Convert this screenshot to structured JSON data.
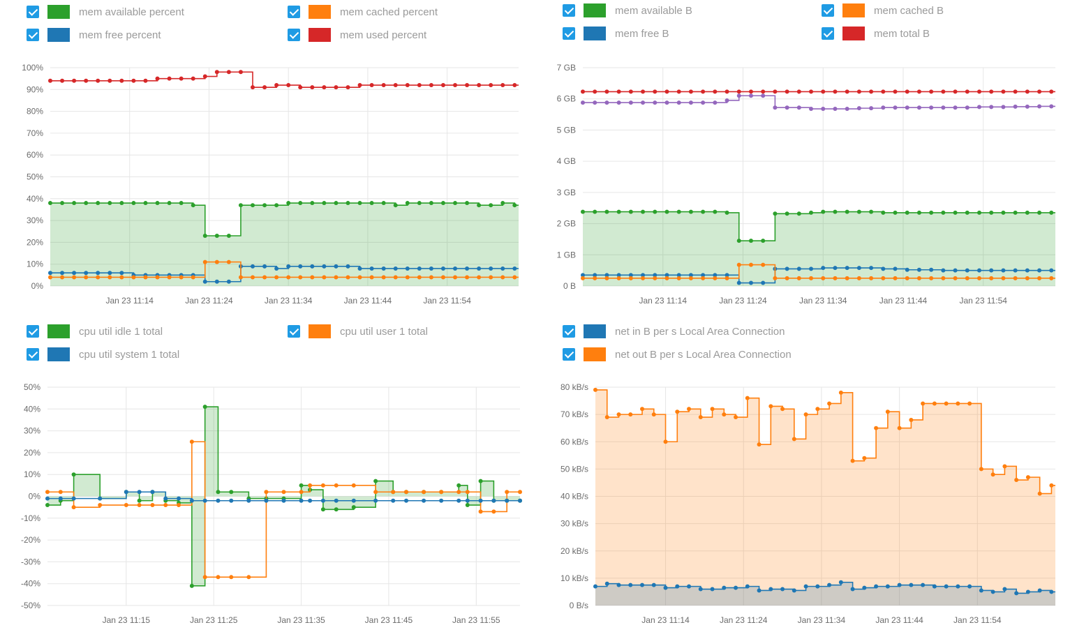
{
  "colors": {
    "green": "#2ca02c",
    "blue": "#1f77b4",
    "orange": "#ff7f0e",
    "red": "#d62728",
    "purple": "#9467bd",
    "checkbox": "#1f9be4"
  },
  "panels": [
    {
      "id": "mem-percent",
      "legend": [
        {
          "label": "mem available percent",
          "color": "#2ca02c"
        },
        {
          "label": "mem cached percent",
          "color": "#ff7f0e"
        },
        {
          "label": "mem free percent",
          "color": "#1f77b4"
        },
        {
          "label": "mem used percent",
          "color": "#d62728"
        }
      ]
    },
    {
      "id": "mem-bytes",
      "legend": [
        {
          "label": "mem available B",
          "color": "#2ca02c"
        },
        {
          "label": "mem cached B",
          "color": "#ff7f0e"
        },
        {
          "label": "mem free B",
          "color": "#1f77b4"
        },
        {
          "label": "mem total B",
          "color": "#d62728"
        }
      ]
    },
    {
      "id": "cpu",
      "legend": [
        {
          "label": "cpu util idle 1 total",
          "color": "#2ca02c"
        },
        {
          "label": "cpu util user 1 total",
          "color": "#ff7f0e"
        },
        {
          "label": "cpu util system 1 total",
          "color": "#1f77b4"
        }
      ]
    },
    {
      "id": "net",
      "legend": [
        {
          "label": "net in B per s Local Area Connection",
          "color": "#1f77b4"
        },
        {
          "label": "net out B per s Local Area Connection",
          "color": "#ff7f0e"
        }
      ]
    }
  ],
  "chart_data": [
    {
      "type": "line",
      "step": true,
      "grid": true,
      "ylim": [
        0,
        100
      ],
      "yticks": [
        0,
        10,
        20,
        30,
        40,
        50,
        60,
        70,
        80,
        90,
        100
      ],
      "ytick_labels": [
        "0%",
        "10%",
        "20%",
        "30%",
        "40%",
        "50%",
        "60%",
        "70%",
        "80%",
        "90%",
        "100%"
      ],
      "xlim": [
        0,
        59
      ],
      "xticks": [
        10,
        20,
        30,
        40,
        50
      ],
      "xtick_labels": [
        "Jan 23 11:14",
        "Jan 23 11:24",
        "Jan 23 11:34",
        "Jan 23 11:44",
        "Jan 23 11:54"
      ],
      "x": [
        0,
        1.5,
        3,
        4.5,
        6,
        7.5,
        9,
        10.5,
        12,
        13.5,
        15,
        16.5,
        18,
        19.5,
        21,
        22.5,
        24,
        25.5,
        27,
        28.5,
        30,
        31.5,
        33,
        34.5,
        36,
        37.5,
        39,
        40.5,
        42,
        43.5,
        45,
        46.5,
        48,
        49.5,
        51,
        52.5,
        54,
        55.5,
        57,
        58.5
      ],
      "series": [
        {
          "name": "mem available percent",
          "color": "#2ca02c",
          "fill": true,
          "markers": true,
          "values": [
            38,
            38,
            38,
            38,
            38,
            38,
            38,
            38,
            38,
            38,
            38,
            38,
            37,
            23,
            23,
            23,
            37,
            37,
            37,
            37,
            38,
            38,
            38,
            38,
            38,
            38,
            38,
            38,
            38,
            37,
            38,
            38,
            38,
            38,
            38,
            38,
            37,
            37,
            38,
            37
          ]
        },
        {
          "name": "mem free percent",
          "color": "#1f77b4",
          "fill": false,
          "markers": true,
          "values": [
            6,
            6,
            6,
            6,
            6,
            6,
            6,
            5,
            5,
            5,
            5,
            5,
            5,
            2,
            2,
            2,
            9,
            9,
            9,
            8,
            9,
            9,
            9,
            9,
            9,
            9,
            8,
            8,
            8,
            8,
            8,
            8,
            8,
            8,
            8,
            8,
            8,
            8,
            8,
            8
          ]
        },
        {
          "name": "mem cached percent",
          "color": "#ff7f0e",
          "fill": false,
          "markers": true,
          "values": [
            4,
            4,
            4,
            4,
            4,
            4,
            4,
            4,
            4,
            4,
            4,
            4,
            4,
            11,
            11,
            11,
            4,
            4,
            4,
            4,
            4,
            4,
            4,
            4,
            4,
            4,
            4,
            4,
            4,
            4,
            4,
            4,
            4,
            4,
            4,
            4,
            4,
            4,
            4,
            4
          ]
        },
        {
          "name": "mem used percent",
          "color": "#d62728",
          "fill": false,
          "markers": true,
          "values": [
            94,
            94,
            94,
            94,
            94,
            94,
            94,
            94,
            94,
            95,
            95,
            95,
            95,
            96,
            98,
            98,
            98,
            91,
            91,
            92,
            92,
            91,
            91,
            91,
            91,
            91,
            92,
            92,
            92,
            92,
            92,
            92,
            92,
            92,
            92,
            92,
            92,
            92,
            92,
            92
          ]
        }
      ]
    },
    {
      "type": "line",
      "step": true,
      "grid": true,
      "ylim": [
        0,
        7
      ],
      "yticks": [
        0,
        1,
        2,
        3,
        4,
        5,
        6,
        7
      ],
      "ytick_labels": [
        "0 B",
        "1 GB",
        "2 GB",
        "3 GB",
        "4 GB",
        "5 GB",
        "6 GB",
        "7 GB"
      ],
      "xlim": [
        0,
        59
      ],
      "xticks": [
        10,
        20,
        30,
        40,
        50
      ],
      "xtick_labels": [
        "Jan 23 11:14",
        "Jan 23 11:24",
        "Jan 23 11:34",
        "Jan 23 11:44",
        "Jan 23 11:54"
      ],
      "x": [
        0,
        1.5,
        3,
        4.5,
        6,
        7.5,
        9,
        10.5,
        12,
        13.5,
        15,
        16.5,
        18,
        19.5,
        21,
        22.5,
        24,
        25.5,
        27,
        28.5,
        30,
        31.5,
        33,
        34.5,
        36,
        37.5,
        39,
        40.5,
        42,
        43.5,
        45,
        46.5,
        48,
        49.5,
        51,
        52.5,
        54,
        55.5,
        57,
        58.5
      ],
      "series": [
        {
          "name": "mem available B",
          "color": "#2ca02c",
          "fill": true,
          "markers": true,
          "values": [
            2.38,
            2.38,
            2.38,
            2.38,
            2.38,
            2.38,
            2.38,
            2.38,
            2.38,
            2.38,
            2.38,
            2.38,
            2.35,
            1.45,
            1.45,
            1.45,
            2.32,
            2.32,
            2.32,
            2.35,
            2.38,
            2.38,
            2.38,
            2.38,
            2.38,
            2.35,
            2.35,
            2.35,
            2.35,
            2.35,
            2.35,
            2.35,
            2.35,
            2.35,
            2.35,
            2.35,
            2.35,
            2.35,
            2.35,
            2.35
          ]
        },
        {
          "name": "mem free B",
          "color": "#1f77b4",
          "fill": false,
          "markers": true,
          "values": [
            0.35,
            0.35,
            0.35,
            0.35,
            0.35,
            0.35,
            0.35,
            0.35,
            0.35,
            0.35,
            0.35,
            0.35,
            0.35,
            0.1,
            0.1,
            0.1,
            0.55,
            0.55,
            0.55,
            0.55,
            0.58,
            0.58,
            0.58,
            0.58,
            0.58,
            0.55,
            0.55,
            0.52,
            0.52,
            0.52,
            0.5,
            0.5,
            0.5,
            0.5,
            0.5,
            0.5,
            0.5,
            0.5,
            0.5,
            0.5
          ]
        },
        {
          "name": "mem cached B",
          "color": "#ff7f0e",
          "fill": false,
          "markers": true,
          "values": [
            0.25,
            0.25,
            0.25,
            0.25,
            0.25,
            0.25,
            0.25,
            0.25,
            0.25,
            0.25,
            0.25,
            0.25,
            0.25,
            0.68,
            0.68,
            0.68,
            0.25,
            0.25,
            0.25,
            0.25,
            0.25,
            0.25,
            0.25,
            0.25,
            0.25,
            0.25,
            0.25,
            0.25,
            0.25,
            0.25,
            0.25,
            0.25,
            0.25,
            0.25,
            0.25,
            0.25,
            0.25,
            0.25,
            0.25,
            0.25
          ]
        },
        {
          "name": "mem total B",
          "color": "#d62728",
          "fill": false,
          "markers": true,
          "values": [
            6.23,
            6.23,
            6.23,
            6.23,
            6.23,
            6.23,
            6.23,
            6.23,
            6.23,
            6.23,
            6.23,
            6.23,
            6.23,
            6.23,
            6.23,
            6.23,
            6.23,
            6.23,
            6.23,
            6.23,
            6.23,
            6.23,
            6.23,
            6.23,
            6.23,
            6.23,
            6.23,
            6.23,
            6.23,
            6.23,
            6.23,
            6.23,
            6.23,
            6.23,
            6.23,
            6.23,
            6.23,
            6.23,
            6.23,
            6.23
          ]
        },
        {
          "color": "#9467bd",
          "fill": false,
          "markers": true,
          "values": [
            5.88,
            5.88,
            5.88,
            5.88,
            5.88,
            5.88,
            5.88,
            5.88,
            5.88,
            5.88,
            5.88,
            5.88,
            5.95,
            6.1,
            6.1,
            6.1,
            5.72,
            5.72,
            5.72,
            5.68,
            5.68,
            5.68,
            5.68,
            5.7,
            5.7,
            5.72,
            5.72,
            5.72,
            5.72,
            5.72,
            5.72,
            5.72,
            5.72,
            5.74,
            5.74,
            5.74,
            5.75,
            5.75,
            5.76,
            5.76
          ]
        }
      ]
    },
    {
      "type": "line",
      "step": true,
      "grid": true,
      "ylim": [
        -50,
        50
      ],
      "yticks": [
        -50,
        -40,
        -30,
        -20,
        -10,
        0,
        10,
        20,
        30,
        40,
        50
      ],
      "ytick_labels": [
        "-50%",
        "-40%",
        "-30%",
        "-20%",
        "-10%",
        "0%",
        "10%",
        "20%",
        "30%",
        "40%",
        "50%"
      ],
      "xlim": [
        0,
        54
      ],
      "xticks": [
        9,
        19,
        29,
        39,
        49
      ],
      "xtick_labels": [
        "Jan 23 11:15",
        "Jan 23 11:25",
        "Jan 23 11:35",
        "Jan 23 11:45",
        "Jan 23 11:55"
      ],
      "x": [
        0,
        1.5,
        3,
        6,
        9,
        10.5,
        12,
        13.5,
        15,
        16.5,
        18,
        19.5,
        21,
        23,
        25,
        27,
        29,
        30,
        31.5,
        33,
        35,
        37.5,
        39.5,
        41,
        43,
        45,
        47,
        48,
        49.5,
        51,
        52.5,
        54
      ],
      "series": [
        {
          "name": "cpu util idle 1 total",
          "color": "#2ca02c",
          "fill": true,
          "markers": true,
          "values": [
            -4,
            -2,
            10,
            -1,
            2,
            -2,
            2,
            -2,
            -3,
            -41,
            41,
            2,
            2,
            -1,
            -1,
            -1,
            5,
            3,
            -6,
            -6,
            -5,
            7,
            2,
            2,
            2,
            2,
            5,
            -4,
            7,
            -2,
            -2,
            -2
          ]
        },
        {
          "name": "cpu util user 1 total",
          "color": "#ff7f0e",
          "fill": false,
          "markers": true,
          "values": [
            2,
            2,
            -5,
            -4,
            -4,
            -4,
            -4,
            -4,
            -4,
            25,
            -37,
            -37,
            -37,
            -37,
            2,
            2,
            2,
            5,
            5,
            5,
            5,
            2,
            2,
            2,
            2,
            2,
            2,
            2,
            -7,
            -7,
            2,
            2
          ]
        },
        {
          "name": "cpu util system 1 total",
          "color": "#1f77b4",
          "fill": false,
          "markers": true,
          "values": [
            -1,
            -1,
            -1,
            -1,
            2,
            2,
            2,
            -1,
            -1,
            -2,
            -2,
            -2,
            -2,
            -2,
            -2,
            -2,
            -2,
            -2,
            -2,
            -2,
            -2,
            -2,
            -2,
            -2,
            -2,
            -2,
            -2,
            -2,
            -2,
            -2,
            -2,
            -2
          ]
        }
      ]
    },
    {
      "type": "area",
      "step": true,
      "grid": true,
      "ylim": [
        0,
        80
      ],
      "yticks": [
        0,
        10,
        20,
        30,
        40,
        50,
        60,
        70,
        80
      ],
      "ytick_labels": [
        "0 B/s",
        "10 kB/s",
        "20 kB/s",
        "30 kB/s",
        "40 kB/s",
        "50 kB/s",
        "60 kB/s",
        "70 kB/s",
        "80 kB/s"
      ],
      "xlim": [
        0,
        59
      ],
      "xticks": [
        9,
        19,
        29,
        39,
        49
      ],
      "xtick_labels": [
        "Jan 23 11:14",
        "Jan 23 11:24",
        "Jan 23 11:34",
        "Jan 23 11:44",
        "Jan 23 11:54"
      ],
      "x": [
        0,
        1.5,
        3,
        4.5,
        6,
        7.5,
        9,
        10.5,
        12,
        13.5,
        15,
        16.5,
        18,
        19.5,
        21,
        22.5,
        24,
        25.5,
        27,
        28.5,
        30,
        31.5,
        33,
        34.5,
        36,
        37.5,
        39,
        40.5,
        42,
        43.5,
        45,
        46.5,
        48,
        49.5,
        51,
        52.5,
        54,
        55.5,
        57,
        58.5
      ],
      "series": [
        {
          "name": "net out B per s Local Area Connection",
          "color": "#ff7f0e",
          "fill": true,
          "markers": true,
          "values": [
            79,
            69,
            70,
            70,
            72,
            70,
            60,
            71,
            72,
            69,
            72,
            70,
            69,
            76,
            59,
            73,
            72,
            61,
            70,
            72,
            74,
            78,
            53,
            54,
            65,
            71,
            65,
            68,
            74,
            74,
            74,
            74,
            74,
            50,
            48,
            51,
            46,
            47,
            41,
            44
          ]
        },
        {
          "name": "net in B per s Local Area Connection",
          "color": "#1f77b4",
          "fill": true,
          "markers": true,
          "values": [
            7,
            8,
            7.5,
            7.5,
            7.5,
            7.5,
            6.5,
            7,
            7,
            6,
            6,
            6.5,
            6.5,
            7,
            5.5,
            6,
            6,
            5.5,
            7,
            7,
            7.5,
            8.5,
            6,
            6.5,
            7,
            7,
            7.5,
            7.5,
            7.5,
            7,
            7,
            7,
            7,
            5.5,
            5,
            6,
            4.5,
            5,
            5.5,
            5
          ]
        }
      ]
    }
  ]
}
